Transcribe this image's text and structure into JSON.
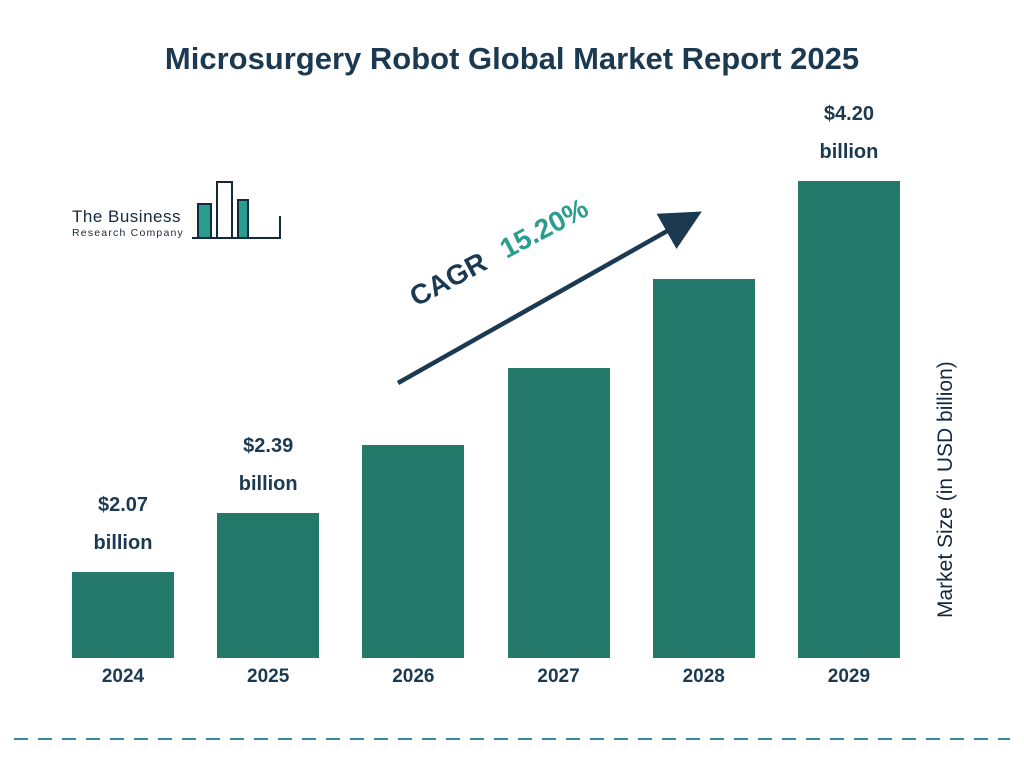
{
  "meta": {
    "title": "Microsurgery Robot Global Market Report 2025"
  },
  "logo": {
    "line1": "The Business",
    "line2": "Research Company"
  },
  "cagr": {
    "prefix": "CAGR",
    "value": "15.20%"
  },
  "axis": {
    "y_label": "Market Size (in USD billion)"
  },
  "colors": {
    "bar": "#25796a",
    "title": "#1b3a52",
    "accent_teal": "#2a9d8f",
    "arrow": "#1b3a52",
    "dashed_rule": "#3c87a0"
  },
  "chart_data": {
    "type": "bar",
    "title": "Microsurgery Robot Global Market Report 2025",
    "categories": [
      "2024",
      "2025",
      "2026",
      "2027",
      "2028",
      "2029"
    ],
    "values": [
      2.07,
      2.39,
      2.76,
      3.18,
      3.66,
      4.2
    ],
    "data_labels": [
      "$2.07 billion",
      "$2.39 billion",
      "",
      "",
      "",
      "$4.20 billion"
    ],
    "xlabel": "",
    "ylabel": "Market Size (in USD billion)",
    "ylim": [
      1.6,
      4.2
    ],
    "grid": false,
    "legend": false,
    "annotation": "CAGR 15.20%"
  }
}
